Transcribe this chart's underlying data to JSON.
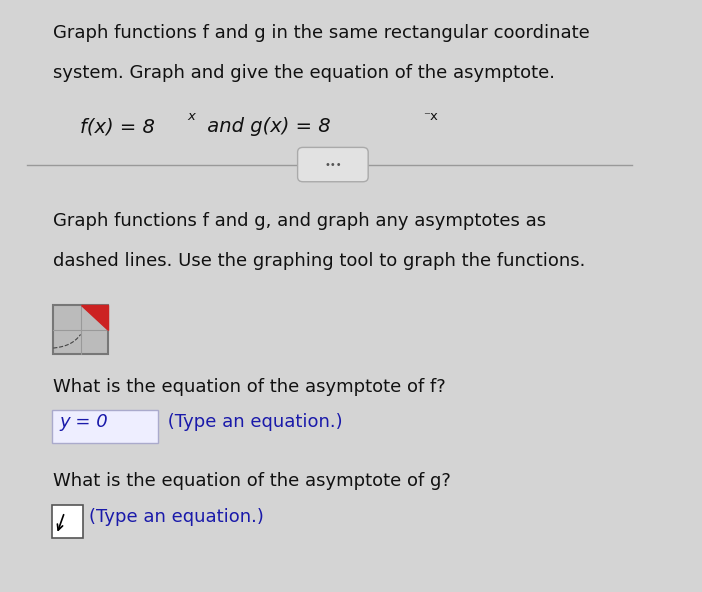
{
  "bg_color": "#d4d4d4",
  "title_line1": "Graph functions f and g in the same rectangular coordinate",
  "title_line2": "system. Graph and give the equation of the asymptote.",
  "separator_color": "#999999",
  "ellipsis_text": "•••",
  "body_line1": "Graph functions f and g, and graph any asymptotes as",
  "body_line2": "dashed lines. Use the graphing tool to graph the functions.",
  "question1": "What is the equation of the asymptote of f?",
  "answer1_box": "y = 0",
  "answer1_hint": " (Type an equation.)",
  "question2": "What is the equation of the asymptote of g?",
  "answer2_hint": "(Type an equation.)",
  "answer_box_color": "#eeeeff",
  "answer_box_border": "#aaaacc",
  "text_color": "#111111",
  "blue_text_color": "#1a1aaa",
  "font_size_title": 13.0,
  "font_size_formula": 14.0,
  "font_size_body": 13.0,
  "font_size_question": 13.0,
  "font_size_answer": 13.0
}
